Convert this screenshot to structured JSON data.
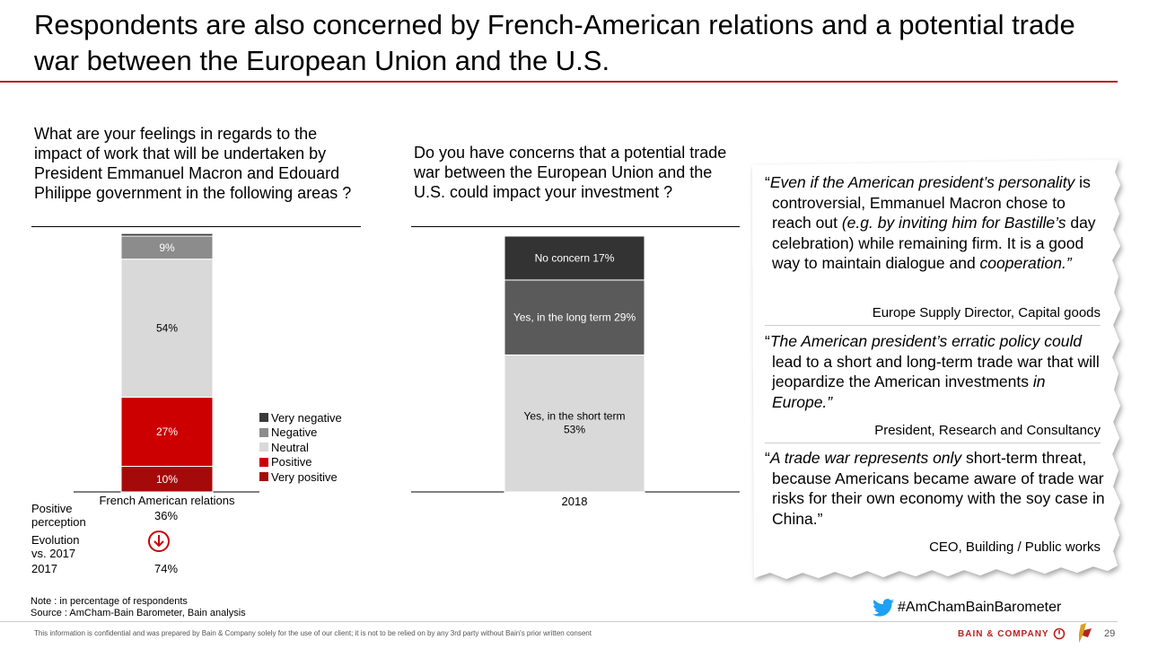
{
  "title": "Respondents are also concerned by French-American relations and a potential trade war between the European Union and the U.S.",
  "colors": {
    "accent": "#b8231c",
    "very_negative": "#3a3a3a",
    "negative": "#8c8c8c",
    "neutral": "#d9d9d9",
    "positive": "#cc0000",
    "very_positive": "#a50a0a",
    "no_concern": "#333333",
    "long_term": "#5a5a5a",
    "short_term": "#d9d9d9"
  },
  "left": {
    "question": "What are your feelings in regards to the impact of work that will be undertaken by President Emmanuel Macron and Edouard Philippe government in the following areas ?",
    "metrics": {
      "positive_perception_label": "Positive perception",
      "positive_perception_value": "36%",
      "evolution_label": "Evolution vs. 2017",
      "evolution_icon": "down-arrow-circle-icon",
      "year_label": "2017",
      "year_value": "74%"
    }
  },
  "right": {
    "question": "Do you have concerns that a potential trade war between the European Union and the U.S. could impact your investment ?"
  },
  "chart_data": [
    {
      "type": "bar",
      "stacked": true,
      "categories": [
        "French American relations"
      ],
      "series": [
        {
          "name": "Very positive",
          "values": [
            10
          ],
          "label": "10%",
          "color": "#a50a0a"
        },
        {
          "name": "Positive",
          "values": [
            27
          ],
          "label": "27%",
          "color": "#cc0000"
        },
        {
          "name": "Neutral",
          "values": [
            54
          ],
          "label": "54%",
          "color": "#d9d9d9"
        },
        {
          "name": "Negative",
          "values": [
            9
          ],
          "label": "9%",
          "color": "#8c8c8c"
        },
        {
          "name": "Very negative",
          "values": [
            1
          ],
          "label": "",
          "color": "#3a3a3a"
        }
      ],
      "legend": [
        "Very negative",
        "Negative",
        "Neutral",
        "Positive",
        "Very positive"
      ],
      "legend_placement": "right",
      "ylim": [
        0,
        100
      ]
    },
    {
      "type": "bar",
      "stacked": true,
      "categories": [
        "2018"
      ],
      "series": [
        {
          "name": "Yes, in the short term",
          "values": [
            53
          ],
          "label": "Yes, in the short term 53%",
          "color": "#d9d9d9"
        },
        {
          "name": "Yes, in the long term",
          "values": [
            29
          ],
          "label": "Yes, in the long term 29%",
          "color": "#5a5a5a"
        },
        {
          "name": "No concern",
          "values": [
            17
          ],
          "label": "No concern 17%",
          "color": "#333333"
        }
      ],
      "ylim": [
        0,
        100
      ]
    }
  ],
  "quotes": [
    {
      "open": "“",
      "text_italic": "Even if the American president’s personality",
      "text": " is controversial, Emmanuel Macron chose to reach out ",
      "text_italic2": "(e.g. by inviting him for Bastille’s",
      "text2": " day celebration) while remaining firm. It is a good way to maintain dialogue and ",
      "text_italic3": "cooperation.”",
      "attribution": "Europe Supply Director, Capital goods"
    },
    {
      "open": "“",
      "text_italic": "The American president’s erratic policy could",
      "text": " lead to a short and long-term trade war that will jeopardize the American investments ",
      "text_italic2": "in Europe.”",
      "text2": "",
      "text_italic3": "",
      "attribution": "President, Research and Consultancy"
    },
    {
      "open": "“",
      "text_italic": "A trade war represents only",
      "text": " short-term threat, because Americans became aware of trade war risks for their own economy with the soy case in China.”",
      "text_italic2": "",
      "text2": "",
      "text_italic3": "",
      "attribution": "CEO, Building / Public works"
    }
  ],
  "hashtag": "#AmChamBainBarometer",
  "twitter_icon": "twitter-bird-icon",
  "note": "Note : in percentage of respondents",
  "source": "Source : AmCham-Bain Barometer, Bain analysis",
  "disclaimer": "This information is confidential and was prepared by Bain & Company solely for the use of our client; it is not to be relied on by any 3rd party without Bain's prior written consent",
  "brand": "BAIN & COMPANY",
  "page_number": "29"
}
